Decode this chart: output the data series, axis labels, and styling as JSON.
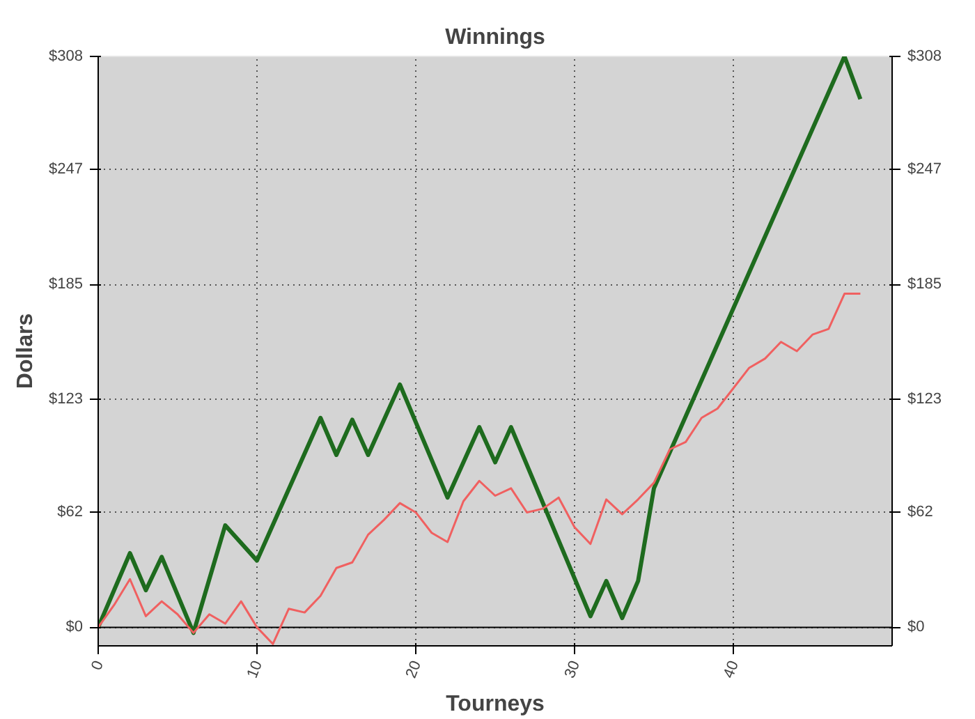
{
  "chart_data": {
    "type": "line",
    "title": "Winnings",
    "xlabel": "Tourneys",
    "ylabel": "Dollars",
    "xlim": [
      0,
      50
    ],
    "xticks": [
      0,
      10,
      20,
      30,
      40
    ],
    "ylim": [
      -10,
      308
    ],
    "yticks": [
      {
        "value": 0,
        "label": "$0"
      },
      {
        "value": 62,
        "label": "$62"
      },
      {
        "value": 123,
        "label": "$123"
      },
      {
        "value": 185,
        "label": "$185"
      },
      {
        "value": 247,
        "label": "$247"
      },
      {
        "value": 308,
        "label": "$308"
      }
    ],
    "y2lim": [
      -10,
      308
    ],
    "y2ticks": [
      {
        "value": 0,
        "label": "$0"
      },
      {
        "value": 62,
        "label": "$62"
      },
      {
        "value": 123,
        "label": "$123"
      },
      {
        "value": 185,
        "label": "$185"
      },
      {
        "value": 247,
        "label": "$247"
      },
      {
        "value": 308,
        "label": "$308"
      }
    ],
    "grid": true,
    "line_style": "solid",
    "series": [
      {
        "color": "#1e6b1e",
        "x": [
          0,
          2,
          3,
          4,
          6,
          8,
          10,
          14,
          15,
          16,
          17,
          19,
          22,
          24,
          25,
          26,
          31,
          32,
          33,
          34,
          35,
          47,
          48
        ],
        "values": [
          0,
          40,
          20,
          38,
          -3,
          55,
          36,
          113,
          93,
          112,
          93,
          131,
          70,
          108,
          89,
          108,
          6,
          25,
          5,
          25,
          75,
          308,
          285
        ]
      },
      {
        "color": "#f06060",
        "x": [
          0,
          1,
          2,
          3,
          4,
          5,
          6,
          7,
          8,
          9,
          10,
          11,
          12,
          13,
          14,
          15,
          16,
          17,
          18,
          19,
          20,
          21,
          22,
          23,
          24,
          25,
          26,
          27,
          28,
          29,
          30,
          31,
          32,
          33,
          34,
          35,
          36,
          37,
          38,
          39,
          40,
          41,
          42,
          43,
          44,
          45,
          46,
          47,
          48
        ],
        "values": [
          0,
          12,
          26,
          6,
          14,
          7,
          -3,
          7,
          2,
          14,
          0,
          -9,
          10,
          8,
          17,
          32,
          35,
          50,
          58,
          67,
          62,
          51,
          46,
          68,
          79,
          71,
          75,
          62,
          64,
          70,
          54,
          45,
          69,
          61,
          69,
          78,
          96,
          100,
          113,
          118,
          129,
          140,
          145,
          154,
          149,
          158,
          161,
          180,
          180
        ]
      }
    ]
  }
}
